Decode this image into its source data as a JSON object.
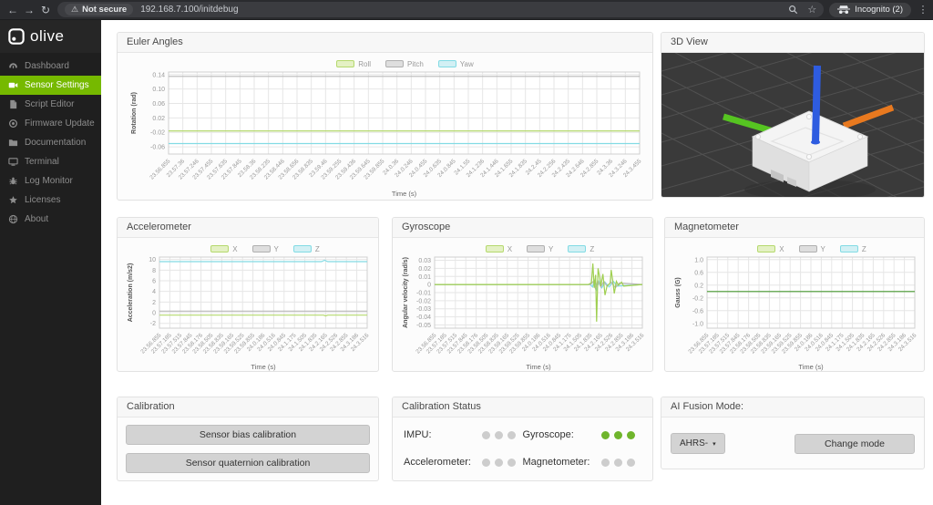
{
  "browser": {
    "url": "192.168.7.100/initdebug",
    "security_label": "Not secure",
    "incognito_label": "Incognito (2)"
  },
  "icons": {
    "back": "←",
    "forward": "→",
    "refresh": "↻",
    "warning": "⚠",
    "star": "☆",
    "menu": "⋮",
    "caret": "▾"
  },
  "sidebar": {
    "logo_text": "olive",
    "active_color": "#76b900",
    "items": [
      {
        "label": "Dashboard",
        "icon": "dashboard-icon",
        "active": false
      },
      {
        "label": "Sensor Settings",
        "icon": "video-camera-icon",
        "active": true
      },
      {
        "label": "Script Editor",
        "icon": "script-icon",
        "active": false
      },
      {
        "label": "Firmware Update",
        "icon": "firmware-icon",
        "active": false
      },
      {
        "label": "Documentation",
        "icon": "folder-icon",
        "active": false
      },
      {
        "label": "Terminal",
        "icon": "terminal-icon",
        "active": false
      },
      {
        "label": "Log Monitor",
        "icon": "bug-icon",
        "active": false
      },
      {
        "label": "Licenses",
        "icon": "star-icon",
        "active": false
      },
      {
        "label": "About",
        "icon": "globe-icon",
        "active": false
      }
    ]
  },
  "panels": {
    "euler": {
      "title": "Euler Angles"
    },
    "view3d": {
      "title": "3D View",
      "axis_colors": {
        "x": "#56c421",
        "y": "#e8791f",
        "z": "#2e5ce0"
      }
    },
    "accelerometer": {
      "title": "Accelerometer"
    },
    "gyroscope": {
      "title": "Gyroscope"
    },
    "magnetometer": {
      "title": "Magnetometer"
    },
    "calibration": {
      "title": "Calibration",
      "buttons": [
        "Sensor bias calibration",
        "Sensor quaternion calibration"
      ]
    },
    "calibration_status": {
      "title": "Calibration Status",
      "status_colors": {
        "active": "#6fb52c",
        "inactive": "#cdcdcd"
      },
      "items": [
        {
          "label": "IMPU:",
          "dots": 3,
          "status": "inactive"
        },
        {
          "label": "Gyroscope:",
          "dots": 3,
          "status": "active"
        },
        {
          "label": "Accelerometer:",
          "dots": 3,
          "status": "inactive"
        },
        {
          "label": "Magnetometer:",
          "dots": 3,
          "status": "inactive"
        }
      ]
    },
    "fusion": {
      "title": "AI Fusion Mode:",
      "dropdown_value": "AHRS-",
      "button": "Change mode"
    }
  },
  "chart_data": [
    {
      "id": "euler",
      "type": "line",
      "title": "Euler Angles",
      "xlabel": "Time (s)",
      "ylabel": "Rotation (rad)",
      "ylim": [
        -0.08,
        0.147
      ],
      "ytick_values": [
        0.14,
        0.1,
        0.06,
        0.02,
        -0.02,
        -0.06
      ],
      "ytick_labels": [
        "0.14",
        "0.10",
        "0.06",
        "0.02",
        "-0.02",
        "-0.06"
      ],
      "xticklabels": [
        "23.56.855",
        "23.57.36",
        "23.57.246",
        "23.57.455",
        "23.57.635",
        "23.57.845",
        "23.58.36",
        "23.58.235",
        "23.58.446",
        "23.58.656",
        "23.58.835",
        "23.59.46",
        "23.59.255",
        "23.59.436",
        "23.59.645",
        "23.59.855",
        "24.0.36",
        "24.0.246",
        "24.0.455",
        "24.0.635",
        "24.0.845",
        "24.1.55",
        "24.1.236",
        "24.1.446",
        "24.1.655",
        "24.1.835",
        "24.2.45",
        "24.2.256",
        "24.2.435",
        "24.2.646",
        "24.2.855",
        "24.3.36",
        "24.3.246",
        "24.3.455"
      ],
      "legend": [
        {
          "label": "Roll",
          "fill": "#e4f1c4",
          "stroke": "#b5d96e"
        },
        {
          "label": "Pitch",
          "fill": "#dedede",
          "stroke": "#b0b0b0"
        },
        {
          "label": "Yaw",
          "fill": "#d2f0f4",
          "stroke": "#82dbe4"
        }
      ],
      "series": [
        {
          "name": "Roll",
          "color": "#b5d96e",
          "points": [
            [
              0,
              -0.016
            ],
            [
              1,
              -0.016
            ]
          ]
        },
        {
          "name": "Pitch",
          "color": "#b8b8b8",
          "points": [
            [
              0,
              0.135
            ],
            [
              1,
              0.135
            ]
          ]
        },
        {
          "name": "Yaw",
          "color": "#82dbe4",
          "points": [
            [
              0,
              -0.051
            ],
            [
              1,
              -0.051
            ]
          ]
        }
      ]
    },
    {
      "id": "accelerometer",
      "type": "line",
      "title": "Accelerometer",
      "xlabel": "Time (s)",
      "ylabel": "Acceleration (m/s2)",
      "ylim": [
        -2.9,
        10.45
      ],
      "ytick_values": [
        10,
        8,
        6,
        4,
        2,
        0,
        -2
      ],
      "ytick_labels": [
        "10",
        "8",
        "6",
        "4",
        "2",
        "0",
        "-2"
      ],
      "xticklabels": [
        "23.56.855",
        "23.57.185",
        "23.57.515",
        "23.57.845",
        "23.58.176",
        "23.58.505",
        "23.58.835",
        "23.59.165",
        "23.59.525",
        "23.59.855",
        "24.0.186",
        "24.0.516",
        "24.0.845",
        "24.1.175",
        "24.1.505",
        "24.1.835",
        "24.2.165",
        "24.2.526",
        "24.2.855",
        "24.3.186",
        "24.3.516"
      ],
      "legend": [
        {
          "label": "X",
          "fill": "#e4f1c4",
          "stroke": "#b5d96e"
        },
        {
          "label": "Y",
          "fill": "#dedede",
          "stroke": "#b0b0b0"
        },
        {
          "label": "Z",
          "fill": "#d2f0f4",
          "stroke": "#82dbe4"
        }
      ],
      "series": [
        {
          "name": "X",
          "color": "#b5d96e",
          "points": [
            [
              0,
              -0.45
            ],
            [
              0.79,
              -0.45
            ],
            [
              0.8,
              -0.6
            ],
            [
              0.81,
              -0.45
            ],
            [
              1,
              -0.45
            ]
          ]
        },
        {
          "name": "Y",
          "color": "#b8b8b8",
          "points": [
            [
              0,
              0.3
            ],
            [
              1,
              0.3
            ]
          ]
        },
        {
          "name": "Z",
          "color": "#82dbe4",
          "points": [
            [
              0,
              9.6
            ],
            [
              0.78,
              9.6
            ],
            [
              0.795,
              9.85
            ],
            [
              0.81,
              9.6
            ],
            [
              1,
              9.6
            ]
          ]
        }
      ]
    },
    {
      "id": "gyroscope",
      "type": "line",
      "title": "Gyroscope",
      "xlabel": "Time (s)",
      "ylabel": "Angular velocity (rad/s)",
      "ylim": [
        -0.054,
        0.034
      ],
      "ytick_values": [
        0.03,
        0.02,
        0.01,
        0,
        -0.01,
        -0.02,
        -0.03,
        -0.04,
        -0.05
      ],
      "ytick_labels": [
        "0.03",
        "0.02",
        "0.01",
        "0",
        "-0.01",
        "-0.02",
        "-0.03",
        "-0.04",
        "-0.05"
      ],
      "xticklabels": [
        "23.56.855",
        "23.57.185",
        "23.57.515",
        "23.57.845",
        "23.58.176",
        "23.58.505",
        "23.58.835",
        "23.59.165",
        "23.59.525",
        "23.59.855",
        "24.0.186",
        "24.0.516",
        "24.0.845",
        "24.1.175",
        "24.1.505",
        "24.1.835",
        "24.2.165",
        "24.2.526",
        "24.2.855",
        "24.3.186",
        "24.3.516"
      ],
      "legend": [
        {
          "label": "X",
          "fill": "#e4f1c4",
          "stroke": "#b5d96e"
        },
        {
          "label": "Y",
          "fill": "#dedede",
          "stroke": "#b0b0b0"
        },
        {
          "label": "Z",
          "fill": "#d2f0f4",
          "stroke": "#82dbe4"
        }
      ],
      "series": [
        {
          "name": "Z",
          "color": "#82dbe4",
          "points": [
            [
              0,
              0
            ],
            [
              0.75,
              0
            ],
            [
              0.76,
              -0.003
            ],
            [
              0.77,
              0.006
            ],
            [
              0.78,
              -0.008
            ],
            [
              0.79,
              0.004
            ],
            [
              0.805,
              -0.004
            ],
            [
              0.82,
              0.003
            ],
            [
              0.84,
              -0.003
            ],
            [
              0.86,
              0.004
            ],
            [
              0.88,
              -0.002
            ],
            [
              1,
              0
            ]
          ]
        },
        {
          "name": "Y",
          "color": "#b8b8b8",
          "points": [
            [
              0,
              0
            ],
            [
              0.75,
              0
            ],
            [
              0.765,
              0.004
            ],
            [
              0.775,
              -0.006
            ],
            [
              0.785,
              0.005
            ],
            [
              0.8,
              -0.003
            ],
            [
              0.815,
              0.004
            ],
            [
              0.83,
              -0.002
            ],
            [
              0.85,
              0.003
            ],
            [
              0.87,
              -0.004
            ],
            [
              0.89,
              0.002
            ],
            [
              1,
              0
            ]
          ]
        },
        {
          "name": "X",
          "color": "#9fcf50",
          "points": [
            [
              0,
              0
            ],
            [
              0.74,
              0
            ],
            [
              0.755,
              0.002
            ],
            [
              0.762,
              0.026
            ],
            [
              0.768,
              -0.004
            ],
            [
              0.775,
              0.012
            ],
            [
              0.78,
              -0.046
            ],
            [
              0.787,
              0.02
            ],
            [
              0.795,
              0.008
            ],
            [
              0.8,
              -0.002
            ],
            [
              0.81,
              0.013
            ],
            [
              0.82,
              -0.013
            ],
            [
              0.83,
              -0.002
            ],
            [
              0.845,
              0.002
            ],
            [
              0.85,
              0.018
            ],
            [
              0.858,
              0.004
            ],
            [
              0.865,
              -0.011
            ],
            [
              0.875,
              0.004
            ],
            [
              0.885,
              -0.001
            ],
            [
              0.9,
              0.003
            ],
            [
              0.91,
              -0.002
            ],
            [
              1,
              0
            ]
          ]
        }
      ]
    },
    {
      "id": "magnetometer",
      "type": "line",
      "title": "Magnetometer",
      "xlabel": "Time (s)",
      "ylabel": "Gauss (G)",
      "ylim": [
        -1.15,
        1.08
      ],
      "ytick_values": [
        1.0,
        0.6,
        0.2,
        -0.2,
        -0.6,
        -1.0
      ],
      "ytick_labels": [
        "1.0",
        "0.6",
        "0.2",
        "-0.2",
        "-0.6",
        "-1.0"
      ],
      "xticklabels": [
        "23.56.855",
        "23.57.185",
        "23.57.515",
        "23.57.845",
        "23.58.176",
        "23.58.505",
        "23.58.835",
        "23.59.165",
        "23.59.525",
        "23.59.855",
        "24.0.186",
        "24.0.516",
        "24.0.845",
        "24.1.175",
        "24.1.505",
        "24.1.835",
        "24.2.165",
        "24.2.526",
        "24.2.855",
        "24.3.186",
        "24.3.516"
      ],
      "legend": [
        {
          "label": "X",
          "fill": "#e4f1c4",
          "stroke": "#b5d96e"
        },
        {
          "label": "Y",
          "fill": "#dedede",
          "stroke": "#b0b0b0"
        },
        {
          "label": "Z",
          "fill": "#d2f0f4",
          "stroke": "#82dbe4"
        }
      ],
      "series": [
        {
          "name": "Z",
          "color": "#82dbe4",
          "points": [
            [
              0,
              0
            ],
            [
              1,
              0
            ]
          ]
        },
        {
          "name": "Y",
          "color": "#b8b8b8",
          "points": [
            [
              0,
              0
            ],
            [
              1,
              0
            ]
          ]
        },
        {
          "name": "X",
          "color": "#58a339",
          "points": [
            [
              0,
              0
            ],
            [
              1,
              0
            ]
          ]
        }
      ]
    }
  ]
}
